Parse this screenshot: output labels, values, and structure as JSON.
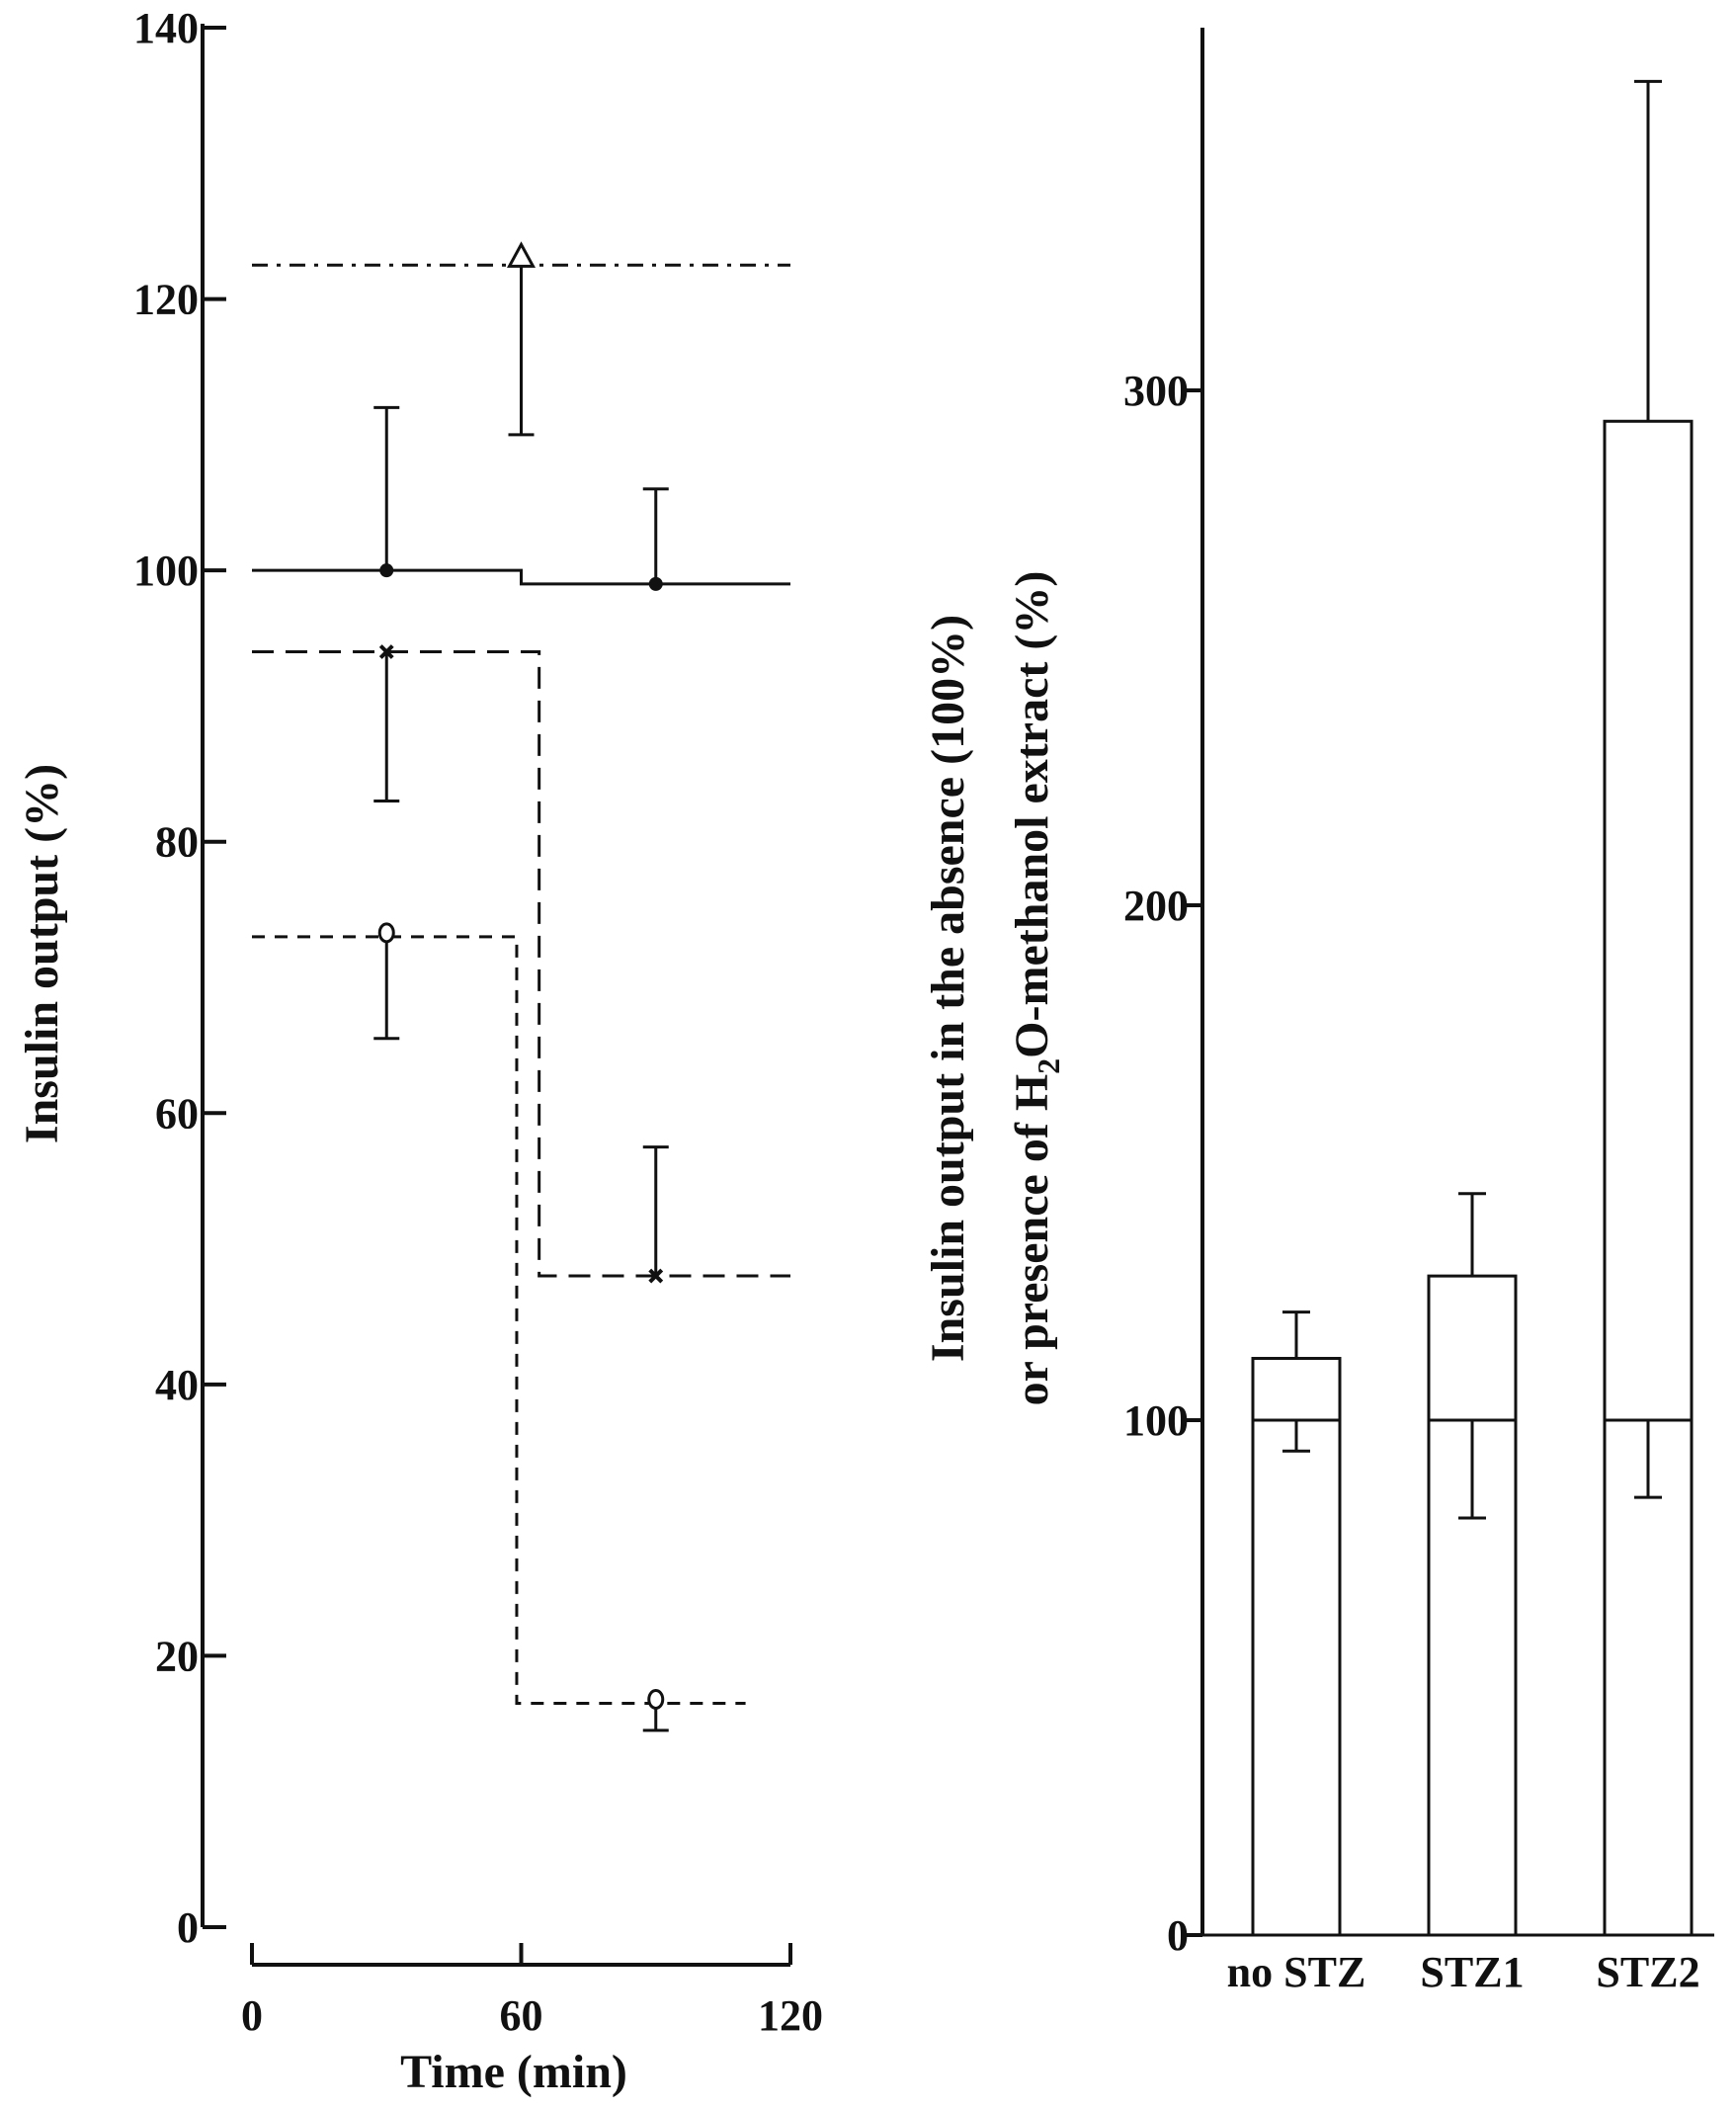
{
  "chart_data": [
    {
      "type": "line",
      "xlabel": "Time (min)",
      "ylabel": "Insulin output (%)",
      "xlim": [
        0,
        120
      ],
      "ylim": [
        0,
        140
      ],
      "x_ticks": [
        0,
        60,
        120
      ],
      "y_ticks": [
        0,
        20,
        40,
        60,
        80,
        100,
        120,
        140
      ],
      "grid": false,
      "legend": "none",
      "series": [
        {
          "style": "dash-dot",
          "marker": "triangle",
          "steps": [
            {
              "x0": 0,
              "x1": 120,
              "y": 122.5
            }
          ],
          "points": [
            {
              "x": 60,
              "y": 123,
              "err_low": 110
            }
          ]
        },
        {
          "style": "solid",
          "marker": "filled-circle",
          "steps": [
            {
              "x0": 0,
              "x1": 60,
              "y": 100
            },
            {
              "x0": 60,
              "x1": 120,
              "y": 99
            }
          ],
          "points": [
            {
              "x": 30,
              "y": 100,
              "err_high": 112
            },
            {
              "x": 90,
              "y": 99,
              "err_high": 106
            }
          ]
        },
        {
          "style": "long-dash",
          "marker": "cross",
          "steps": [
            {
              "x0": 0,
              "x1": 64,
              "y": 94
            },
            {
              "x0": 64,
              "x1": 120,
              "y": 48
            }
          ],
          "points": [
            {
              "x": 30,
              "y": 94,
              "err_low": 83
            },
            {
              "x": 90,
              "y": 48,
              "err_high": 57.5
            }
          ]
        },
        {
          "style": "short-dash",
          "marker": "open-circle",
          "steps": [
            {
              "x0": 0,
              "x1": 59,
              "y": 73
            },
            {
              "x0": 59,
              "x1": 110,
              "y": 16.5
            }
          ],
          "points": [
            {
              "x": 30,
              "y": 73,
              "err_low": 65.5
            },
            {
              "x": 90,
              "y": 16.5,
              "err_low": 14.5
            }
          ]
        }
      ]
    },
    {
      "type": "bar",
      "ylabel_line1": "Insulin output in the absence (100%)",
      "ylabel_line2_pre": "or presence of H",
      "ylabel_line2_sub": "2",
      "ylabel_line2_post": "O-methanol extract (%)",
      "ylim": [
        0,
        370
      ],
      "y_ticks": [
        0,
        100,
        200,
        300
      ],
      "categories": [
        "no STZ",
        "STZ1",
        "STZ2"
      ],
      "values": [
        112,
        128,
        294
      ],
      "err_high": [
        121,
        144,
        360
      ],
      "baseline": 100,
      "baseline_err_low": [
        94,
        81,
        85
      ],
      "grid": false,
      "legend": "none"
    }
  ]
}
